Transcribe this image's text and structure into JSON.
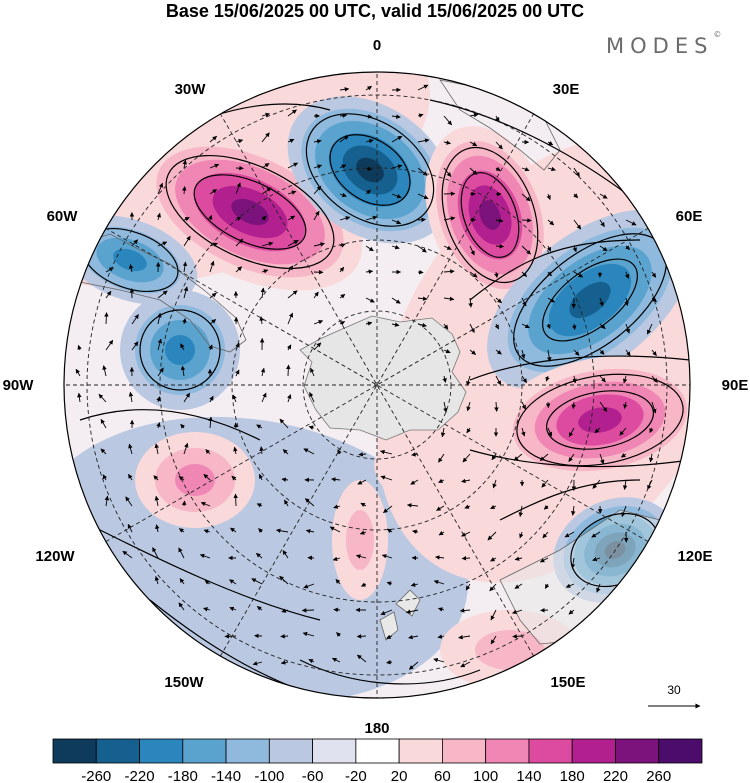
{
  "title": "Base 15/06/2025 00 UTC, valid 15/06/2025 00 UTC",
  "brand": "MODES",
  "brand_mark": "©",
  "longitude_labels": {
    "top": "0",
    "top_left": "30W",
    "top_right": "30E",
    "upper_left": "60W",
    "upper_right": "60E",
    "left": "90W",
    "right": "90E",
    "lower_left": "120W",
    "lower_right": "120E",
    "bottom_left": "150W",
    "bottom_right": "150E",
    "bottom": "180"
  },
  "reference_vector": {
    "label": "30"
  },
  "colorbar": {
    "ticks": [
      "-260",
      "-220",
      "-180",
      "-140",
      "-100",
      "-60",
      "-20",
      "20",
      "60",
      "100",
      "140",
      "180",
      "220",
      "260"
    ],
    "colors": [
      "#0e3a5b",
      "#15608f",
      "#2a86bc",
      "#5aa3cf",
      "#8fb9dd",
      "#bac8e2",
      "#e1e2ef",
      "#ffffff",
      "#f9d9da",
      "#f7b7c7",
      "#ef86b4",
      "#dd4ba0",
      "#b2208f",
      "#7c137d",
      "#4b0c6b"
    ]
  },
  "field_colors": {
    "blue_strong": "#15608f",
    "blue_mid": "#2a86bc",
    "blue_light": "#8fb9dd",
    "blue_pale": "#bac8e2",
    "pink_pale": "#f9d9da",
    "pink_light": "#f7b7c7",
    "pink_mid": "#ef86b4",
    "magenta": "#dd4ba0",
    "purple": "#7c137d",
    "land_grey": "#e6e6e6"
  }
}
